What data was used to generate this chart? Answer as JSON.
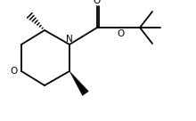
{
  "bg_color": "#ffffff",
  "line_color": "#000000",
  "lw": 1.3,
  "fs": 7.5,
  "figsize": [
    2.2,
    1.36
  ],
  "dpi": 100,
  "xlim": [
    0,
    11
  ],
  "ylim": [
    0,
    6.8
  ]
}
